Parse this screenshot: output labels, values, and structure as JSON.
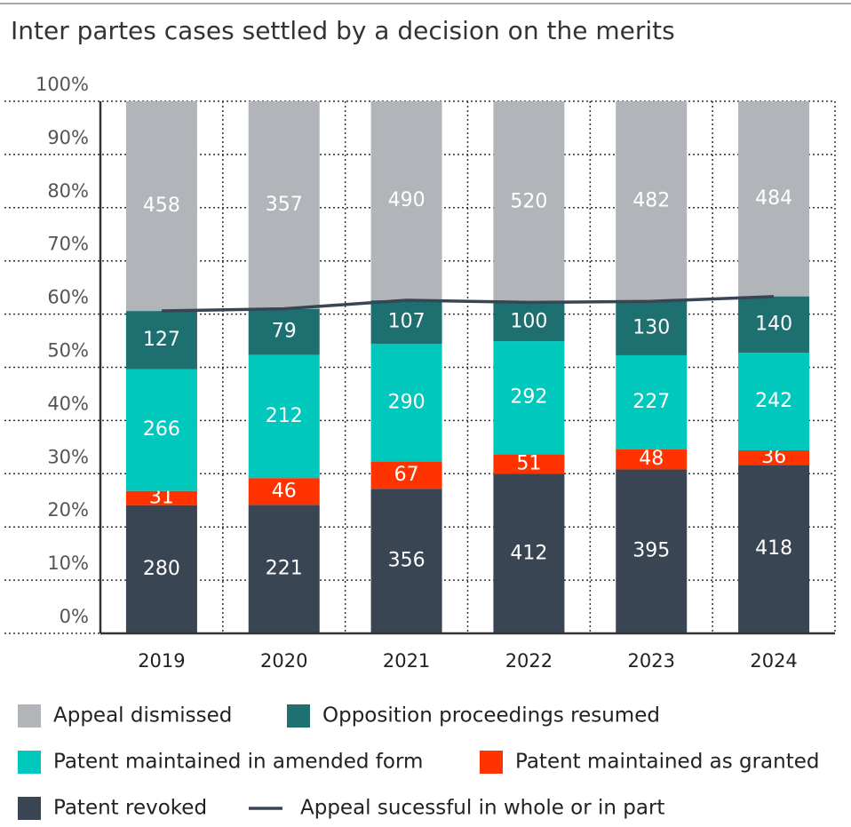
{
  "chart_data": {
    "type": "bar",
    "stacking": "percent",
    "title": "Inter partes cases settled by a decision on the merits",
    "categories": [
      "2019",
      "2020",
      "2021",
      "2022",
      "2023",
      "2024"
    ],
    "series": [
      {
        "name": "Appeal dismissed",
        "color": "#b1b5b9",
        "values": [
          458,
          357,
          490,
          520,
          482,
          484
        ]
      },
      {
        "name": "Opposition proceedings resumed",
        "color": "#1d6f70",
        "values": [
          127,
          79,
          107,
          100,
          130,
          140
        ]
      },
      {
        "name": "Patent maintained in amended form",
        "color": "#00c8bc",
        "values": [
          266,
          212,
          290,
          292,
          227,
          242
        ]
      },
      {
        "name": "Patent maintained as granted",
        "color": "#ff3300",
        "values": [
          31,
          46,
          67,
          51,
          48,
          36
        ]
      },
      {
        "name": "Patent revoked",
        "color": "#3a4553",
        "values": [
          280,
          221,
          356,
          412,
          395,
          418
        ]
      }
    ],
    "line": {
      "name": "Appeal sucessful in whole or in part",
      "color": "#3a4553",
      "values": [
        60.6,
        61.0,
        62.6,
        62.2,
        62.4,
        63.3
      ]
    },
    "ylim": [
      0,
      100
    ],
    "yticks": [
      {
        "value": 0,
        "label": "0%"
      },
      {
        "value": 10,
        "label": "10%"
      },
      {
        "value": 20,
        "label": "20%"
      },
      {
        "value": 30,
        "label": "30%"
      },
      {
        "value": 40,
        "label": "40%"
      },
      {
        "value": 50,
        "label": "50%"
      },
      {
        "value": 60,
        "label": "60%"
      },
      {
        "value": 70,
        "label": "70%"
      },
      {
        "value": 80,
        "label": "80%"
      },
      {
        "value": 90,
        "label": "90%"
      },
      {
        "value": 100,
        "label": "100%"
      }
    ],
    "grid": true
  }
}
